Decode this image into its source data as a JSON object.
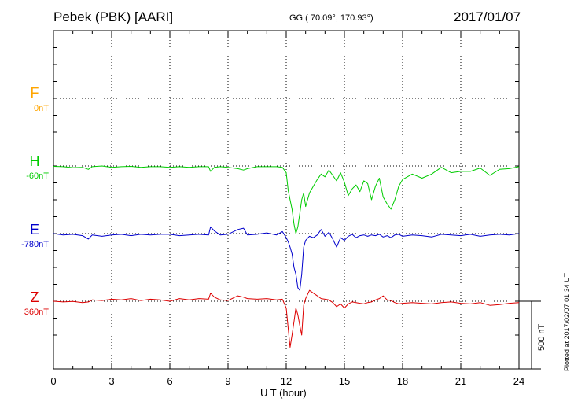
{
  "header": {
    "station": "Pebek (PBK)  [AARI]",
    "coords": "GG ( 70.09°, 170.93°)",
    "date": "2017/01/07"
  },
  "components": [
    {
      "letter": "F",
      "offset": "0nT",
      "color": "#ffa500"
    },
    {
      "letter": "H",
      "offset": "-60nT",
      "color": "#00cc00"
    },
    {
      "letter": "E",
      "offset": "-780nT",
      "color": "#0000cc"
    },
    {
      "letter": "Z",
      "offset": "360nT",
      "color": "#dd0000"
    }
  ],
  "side_note": "Plotted at 2017/02/07 01:34  UT",
  "scale": {
    "label": "500 nT",
    "value_nT": 500
  },
  "chart_data": {
    "type": "line",
    "xlabel": "U T (hour)",
    "xlim": [
      0,
      24
    ],
    "xticks": [
      0,
      3,
      6,
      9,
      12,
      15,
      18,
      21,
      24
    ],
    "grid": true,
    "unit": "nT",
    "series": [
      {
        "name": "H",
        "color": "#00cc00",
        "baseline_offset": "-60nT",
        "x": [
          0,
          0.5,
          1,
          1.5,
          1.8,
          2,
          2.5,
          3,
          3.5,
          4,
          4.5,
          5,
          5.5,
          6,
          6.5,
          7,
          7.5,
          8,
          8.1,
          8.3,
          8.6,
          9,
          9.5,
          9.8,
          10,
          10.5,
          11,
          11.5,
          11.8,
          12.0,
          12.1,
          12.2,
          12.3,
          12.4,
          12.5,
          12.6,
          12.7,
          12.8,
          12.9,
          13.0,
          13.2,
          13.4,
          13.6,
          13.8,
          14.0,
          14.2,
          14.4,
          14.6,
          14.8,
          15.0,
          15.2,
          15.4,
          15.6,
          15.8,
          16.0,
          16.2,
          16.4,
          16.6,
          16.8,
          17.0,
          17.2,
          17.4,
          17.6,
          17.8,
          18.0,
          18.5,
          19,
          19.5,
          20,
          20.5,
          21,
          21.5,
          22,
          22.5,
          23,
          23.5,
          24
        ],
        "values": [
          -3,
          -5,
          -12,
          -10,
          -25,
          -5,
          0,
          -10,
          -5,
          -3,
          -10,
          -5,
          -5,
          -10,
          -5,
          -10,
          -5,
          -5,
          -40,
          -10,
          -5,
          -10,
          -20,
          -30,
          -20,
          -5,
          -5,
          -5,
          -10,
          -50,
          -180,
          -250,
          -320,
          -430,
          -500,
          -450,
          -350,
          -250,
          -200,
          -300,
          -200,
          -150,
          -100,
          -60,
          -80,
          -30,
          -70,
          -110,
          -50,
          -120,
          -220,
          -170,
          -140,
          -190,
          -110,
          -130,
          -250,
          -150,
          -90,
          -230,
          -280,
          -320,
          -250,
          -150,
          -100,
          -60,
          -90,
          -60,
          -10,
          -50,
          -40,
          -40,
          -15,
          -70,
          -25,
          -20,
          -5
        ]
      },
      {
        "name": "E",
        "color": "#0000cc",
        "baseline_offset": "-780nT",
        "x": [
          0,
          0.5,
          1,
          1.5,
          1.8,
          2,
          2.5,
          3,
          3.5,
          4,
          4.5,
          5,
          5.5,
          6,
          6.5,
          7,
          7.5,
          8,
          8.1,
          8.3,
          8.6,
          9,
          9.5,
          9.8,
          10,
          10.5,
          11,
          11.5,
          11.8,
          12.0,
          12.1,
          12.2,
          12.3,
          12.4,
          12.5,
          12.6,
          12.7,
          12.8,
          12.9,
          13.0,
          13.2,
          13.4,
          13.6,
          13.8,
          14.0,
          14.2,
          14.4,
          14.6,
          14.8,
          15.0,
          15.2,
          15.4,
          15.6,
          15.8,
          16.0,
          16.2,
          16.4,
          16.6,
          16.8,
          17.0,
          17.2,
          17.4,
          17.6,
          17.8,
          18.0,
          18.5,
          19,
          19.5,
          20,
          20.5,
          21,
          21.5,
          22,
          22.5,
          23,
          23.5,
          24
        ],
        "values": [
          0,
          -10,
          -5,
          -15,
          -40,
          -10,
          -20,
          -10,
          -5,
          -15,
          -5,
          -10,
          -5,
          -5,
          -15,
          -10,
          -5,
          -10,
          50,
          20,
          -10,
          -5,
          30,
          40,
          -10,
          -5,
          5,
          -10,
          15,
          -30,
          -60,
          -100,
          -150,
          -250,
          -300,
          -400,
          -420,
          -300,
          -100,
          -50,
          -20,
          -30,
          -10,
          30,
          -20,
          10,
          -40,
          -100,
          -30,
          -50,
          -20,
          -5,
          -30,
          -15,
          -10,
          -20,
          -10,
          -15,
          -5,
          -25,
          -15,
          -30,
          -10,
          -5,
          -20,
          -10,
          -15,
          -25,
          -5,
          -10,
          -15,
          -5,
          -20,
          -10,
          -5,
          -10,
          0
        ]
      },
      {
        "name": "Z",
        "color": "#dd0000",
        "baseline_offset": "360nT",
        "x": [
          0,
          0.5,
          1,
          1.5,
          1.8,
          2,
          2.5,
          3,
          3.5,
          4,
          4.5,
          5,
          5.5,
          6,
          6.5,
          7,
          7.5,
          8,
          8.1,
          8.3,
          8.6,
          9,
          9.5,
          9.8,
          10,
          10.5,
          11,
          11.5,
          11.8,
          12.0,
          12.1,
          12.2,
          12.3,
          12.4,
          12.5,
          12.6,
          12.7,
          12.8,
          12.9,
          13.0,
          13.2,
          13.4,
          13.6,
          13.8,
          14.0,
          14.2,
          14.4,
          14.6,
          14.8,
          15.0,
          15.2,
          15.4,
          15.6,
          15.8,
          16.0,
          16.2,
          16.4,
          16.6,
          16.8,
          17.0,
          17.2,
          17.4,
          17.6,
          17.8,
          18.0,
          18.5,
          19,
          19.5,
          20,
          20.5,
          21,
          21.5,
          22,
          22.5,
          23,
          23.5,
          24
        ],
        "values": [
          0,
          -5,
          -2,
          -10,
          -5,
          10,
          5,
          15,
          10,
          20,
          5,
          15,
          10,
          0,
          20,
          10,
          20,
          15,
          60,
          30,
          10,
          5,
          40,
          30,
          20,
          15,
          20,
          10,
          15,
          -50,
          -200,
          -340,
          -250,
          -150,
          -50,
          -100,
          -180,
          -250,
          -30,
          20,
          80,
          60,
          40,
          20,
          15,
          10,
          -10,
          -40,
          -20,
          -50,
          -20,
          -5,
          -10,
          -15,
          -20,
          -10,
          -5,
          10,
          20,
          40,
          10,
          5,
          -10,
          -20,
          -15,
          -10,
          -15,
          -20,
          -10,
          -5,
          -15,
          -20,
          -10,
          -30,
          -25,
          -15,
          -10
        ]
      }
    ]
  }
}
